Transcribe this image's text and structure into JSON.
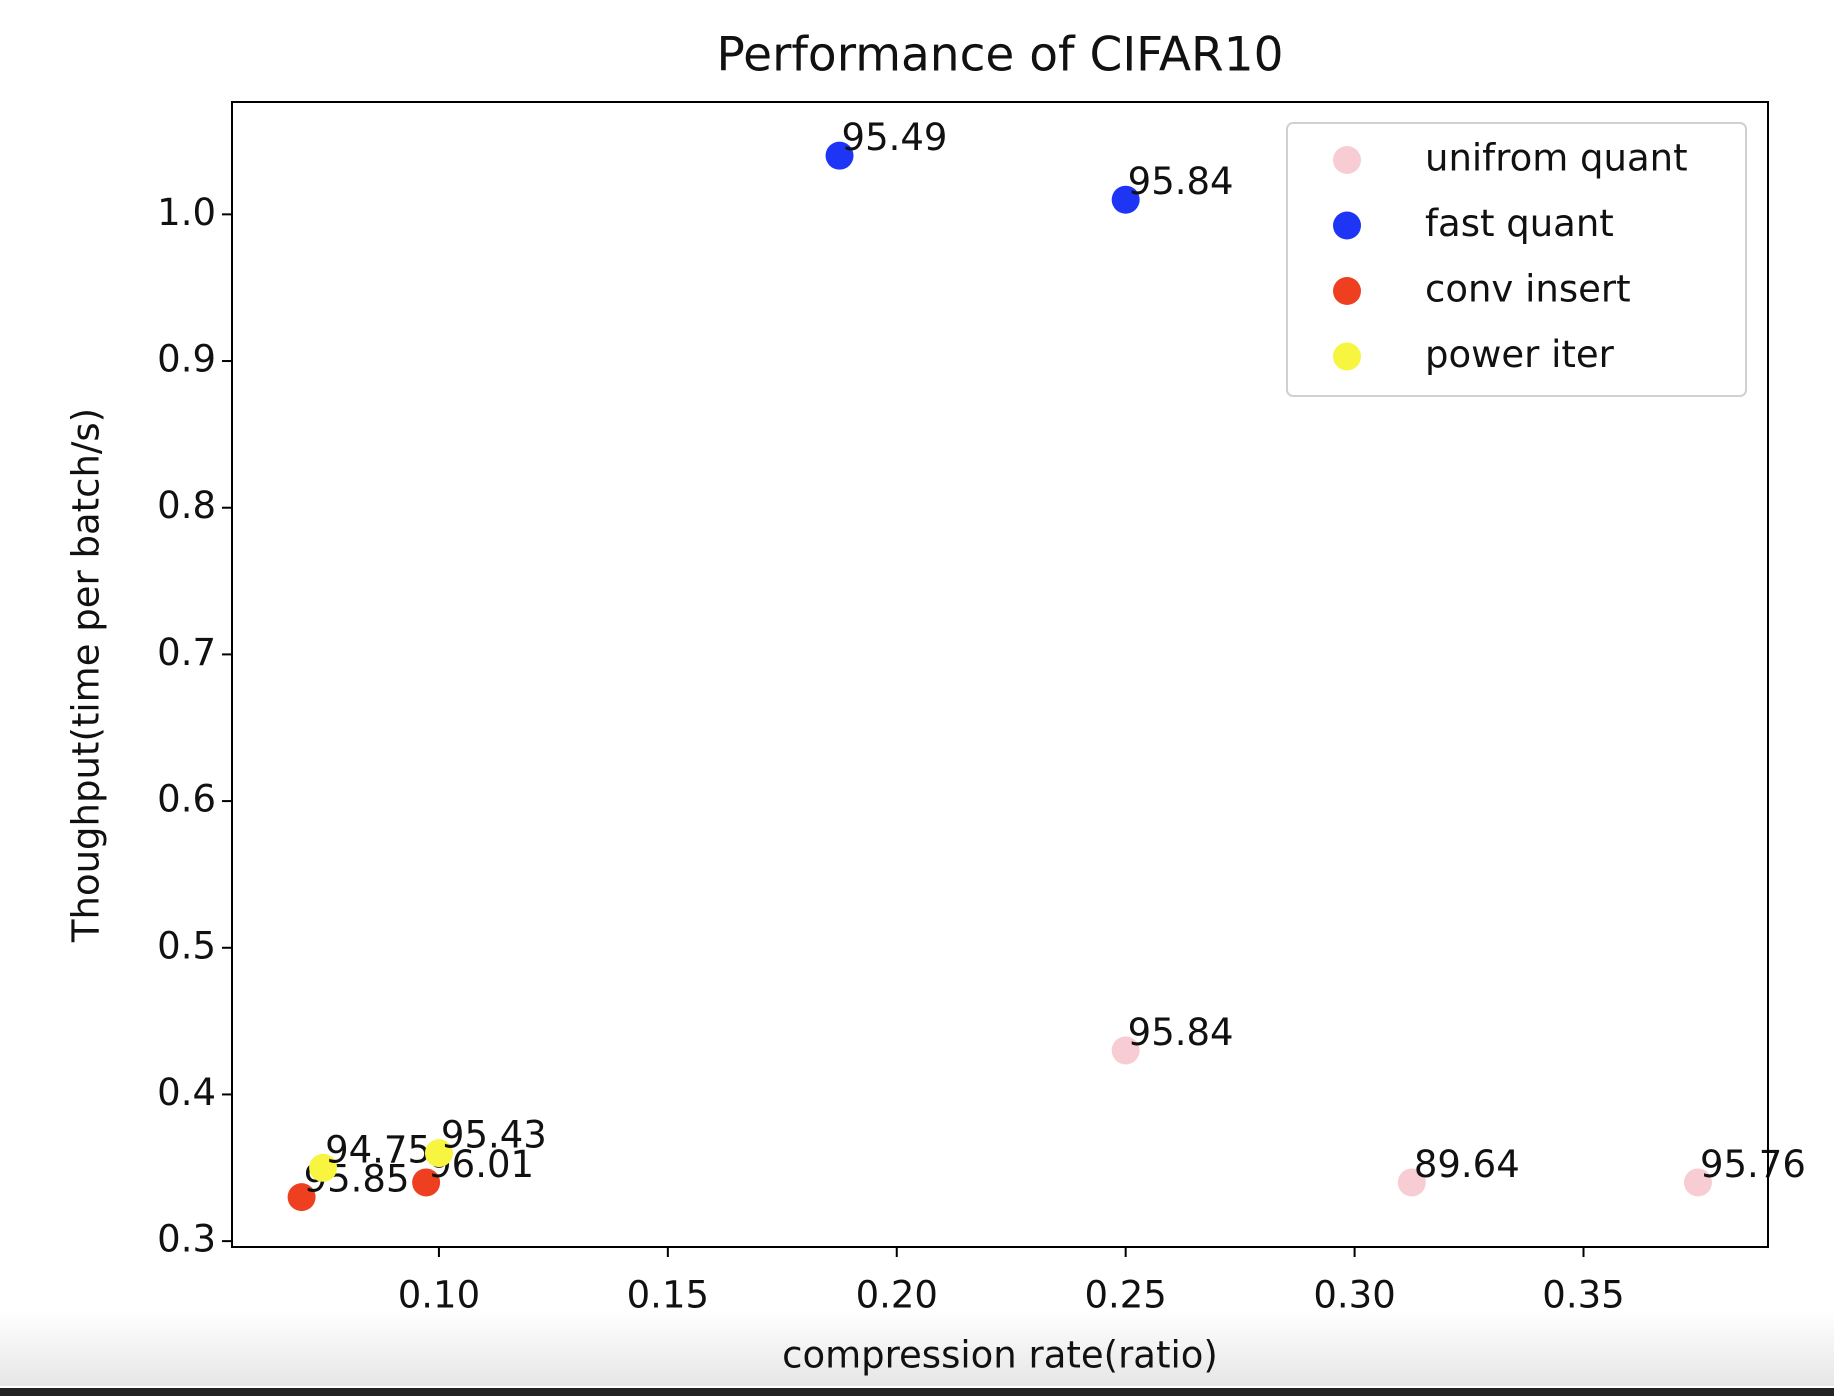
{
  "chart_data": {
    "type": "scatter",
    "title": "Performance of CIFAR10",
    "xlabel": "compression rate(ratio)",
    "ylabel": "Thoughput(time per batch/s)",
    "xlim": [
      0.0548,
      0.3903
    ],
    "ylim": [
      0.296,
      1.0766
    ],
    "xticks": [
      {
        "value": 0.1,
        "label": "0.10"
      },
      0.15,
      {
        "value": 0.2,
        "label": "0.20"
      },
      0.25,
      {
        "value": 0.3,
        "label": "0.30"
      },
      0.35
    ],
    "yticks": [
      0.3,
      0.4,
      0.5,
      0.6,
      0.7,
      0.8,
      0.9,
      {
        "value": 1.0,
        "label": "1.0"
      }
    ],
    "legend": "upper right",
    "series": [
      {
        "name": "unifrom quant",
        "color": "#f7cdd3",
        "x": [
          0.25,
          0.3125,
          0.375
        ],
        "values": [
          0.43,
          0.34,
          0.34
        ],
        "labels": [
          "95.84",
          "89.64",
          "95.76"
        ]
      },
      {
        "name": "fast quant",
        "color": "#1f35f5",
        "x": [
          0.1875,
          0.25
        ],
        "values": [
          1.04,
          1.01
        ],
        "labels": [
          "95.49",
          "95.84"
        ]
      },
      {
        "name": "conv insert",
        "color": "#ee4020",
        "x": [
          0.07,
          0.0972
        ],
        "values": [
          0.33,
          0.34
        ],
        "labels": [
          "95.85",
          "96.01"
        ]
      },
      {
        "name": "power iter",
        "color": "#f8f540",
        "x": [
          0.0747,
          0.1
        ],
        "values": [
          0.35,
          0.36
        ],
        "labels": [
          "94.75",
          "95.43"
        ]
      }
    ]
  }
}
